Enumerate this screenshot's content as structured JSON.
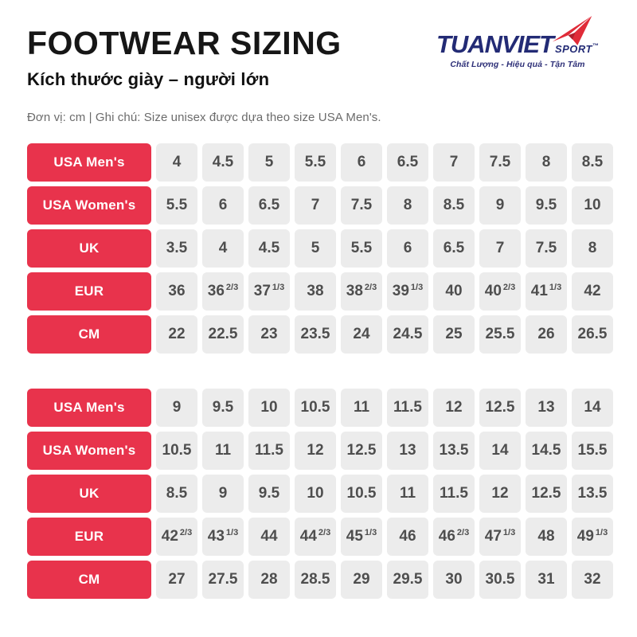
{
  "header": {
    "title": "FOOTWEAR SIZING",
    "subtitle": "Kích thước giày – người lớn",
    "note": "Đơn vị: cm | Ghi chú: Size unisex được dựa theo size USA Men's."
  },
  "logo": {
    "brand": "TUANVIET",
    "sport": "SPORT",
    "tm": "™",
    "tagline": "Chất Lượng - Hiệu quả - Tận Tâm",
    "colors": {
      "navy": "#232b75",
      "red": "#e02b38"
    }
  },
  "colors": {
    "row_header_bg": "#e8334c",
    "row_header_text": "#ffffff",
    "cell_bg": "#ececec",
    "cell_text": "#4e4e4e"
  },
  "chart_data": [
    {
      "type": "table",
      "rows": [
        {
          "label": "USA Men's",
          "values": [
            "4",
            "4.5",
            "5",
            "5.5",
            "6",
            "6.5",
            "7",
            "7.5",
            "8",
            "8.5"
          ]
        },
        {
          "label": "USA Women's",
          "values": [
            "5.5",
            "6",
            "6.5",
            "7",
            "7.5",
            "8",
            "8.5",
            "9",
            "9.5",
            "10"
          ]
        },
        {
          "label": "UK",
          "values": [
            "3.5",
            "4",
            "4.5",
            "5",
            "5.5",
            "6",
            "6.5",
            "7",
            "7.5",
            "8"
          ]
        },
        {
          "label": "EUR",
          "values": [
            "36",
            "36 2/3",
            "37 1/3",
            "38",
            "38 2/3",
            "39 1/3",
            "40",
            "40 2/3",
            "41 1/3",
            "42"
          ]
        },
        {
          "label": "CM",
          "values": [
            "22",
            "22.5",
            "23",
            "23.5",
            "24",
            "24.5",
            "25",
            "25.5",
            "26",
            "26.5"
          ]
        }
      ]
    },
    {
      "type": "table",
      "rows": [
        {
          "label": "USA Men's",
          "values": [
            "9",
            "9.5",
            "10",
            "10.5",
            "11",
            "11.5",
            "12",
            "12.5",
            "13",
            "14"
          ]
        },
        {
          "label": "USA Women's",
          "values": [
            "10.5",
            "11",
            "11.5",
            "12",
            "12.5",
            "13",
            "13.5",
            "14",
            "14.5",
            "15.5"
          ]
        },
        {
          "label": "UK",
          "values": [
            "8.5",
            "9",
            "9.5",
            "10",
            "10.5",
            "11",
            "11.5",
            "12",
            "12.5",
            "13.5"
          ]
        },
        {
          "label": "EUR",
          "values": [
            "42 2/3",
            "43 1/3",
            "44",
            "44 2/3",
            "45 1/3",
            "46",
            "46 2/3",
            "47 1/3",
            "48",
            "49 1/3"
          ]
        },
        {
          "label": "CM",
          "values": [
            "27",
            "27.5",
            "28",
            "28.5",
            "29",
            "29.5",
            "30",
            "30.5",
            "31",
            "32"
          ]
        }
      ]
    }
  ]
}
